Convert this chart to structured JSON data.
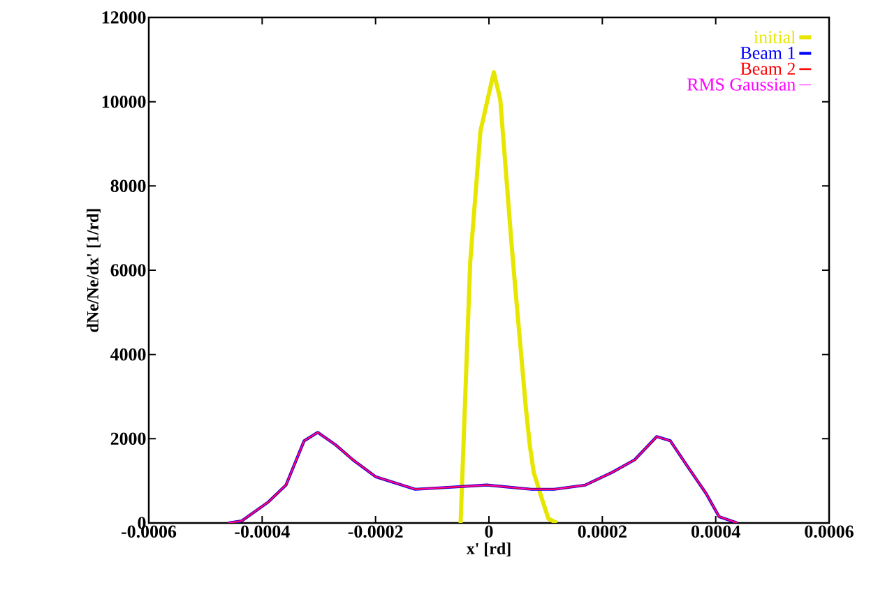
{
  "chart_data": {
    "type": "line",
    "xlabel": "x' [rd]",
    "ylabel": "dNe/Ne/dx' [1/rd]",
    "xlim": [
      -0.0006,
      0.0006
    ],
    "ylim": [
      0,
      12000
    ],
    "xticks": [
      -0.0006,
      -0.0004,
      -0.0002,
      0,
      0.0002,
      0.0004,
      0.0006
    ],
    "yticks": [
      0,
      2000,
      4000,
      6000,
      8000,
      10000,
      12000
    ],
    "legend": "top right",
    "grid": false,
    "marker": "none",
    "series": [
      {
        "name": "initial",
        "color": "#e6e600",
        "x": [
          -5e-05,
          -3.3e-05,
          -1.5e-05,
          -1e-05,
          8.6e-06,
          2e-05,
          4e-05,
          4.7e-05,
          6.5e-05,
          7.2e-05,
          7.9e-05,
          9.4e-05,
          0.000105,
          0.00012
        ],
        "values": [
          0,
          6200,
          9300,
          9600,
          10700,
          10050,
          6600,
          5500,
          2750,
          1850,
          1200,
          550,
          100,
          0
        ]
      },
      {
        "name": "Beam 1",
        "color": "#0000ff",
        "x": [
          -0.00046,
          -0.000436,
          -0.000389,
          -0.000358,
          -0.000326,
          -0.000302,
          -0.00027,
          -0.00024,
          -0.0002,
          -0.00013,
          -6.7e-05,
          -4e-06,
          7.5e-05,
          0.000115,
          0.00017,
          0.000217,
          0.000257,
          0.000296,
          0.00032,
          0.00035,
          0.000383,
          0.000406,
          0.000438
        ],
        "values": [
          0,
          50,
          500,
          900,
          1950,
          2150,
          1850,
          1500,
          1100,
          800,
          850,
          900,
          800,
          800,
          900,
          1200,
          1500,
          2050,
          1950,
          1350,
          700,
          150,
          0
        ]
      },
      {
        "name": "Beam 2",
        "color": "#ff0000",
        "x": [
          -0.00046,
          -0.000436,
          -0.000389,
          -0.000358,
          -0.000326,
          -0.000302,
          -0.00027,
          -0.00024,
          -0.0002,
          -0.00013,
          -6.7e-05,
          -4e-06,
          7.5e-05,
          0.000115,
          0.00017,
          0.000217,
          0.000257,
          0.000296,
          0.00032,
          0.00035,
          0.000383,
          0.000406,
          0.000438
        ],
        "values": [
          0,
          50,
          500,
          900,
          1950,
          2150,
          1850,
          1500,
          1100,
          800,
          850,
          900,
          800,
          800,
          900,
          1200,
          1500,
          2050,
          1950,
          1350,
          700,
          150,
          0
        ]
      },
      {
        "name": "RMS Gaussian",
        "color": "#ff00ff",
        "x": [
          -0.00046,
          -0.000436,
          -0.000389,
          -0.000358,
          -0.000326,
          -0.000302,
          -0.00027,
          -0.00024,
          -0.0002,
          -0.00013,
          -6.7e-05,
          -4e-06,
          7.5e-05,
          0.000115,
          0.00017,
          0.000217,
          0.000257,
          0.000296,
          0.00032,
          0.00035,
          0.000383,
          0.000406,
          0.000438
        ],
        "values": [
          0,
          50,
          500,
          900,
          1950,
          2150,
          1850,
          1500,
          1100,
          800,
          850,
          900,
          800,
          800,
          900,
          1200,
          1500,
          2050,
          1950,
          1350,
          700,
          150,
          0
        ]
      }
    ]
  }
}
